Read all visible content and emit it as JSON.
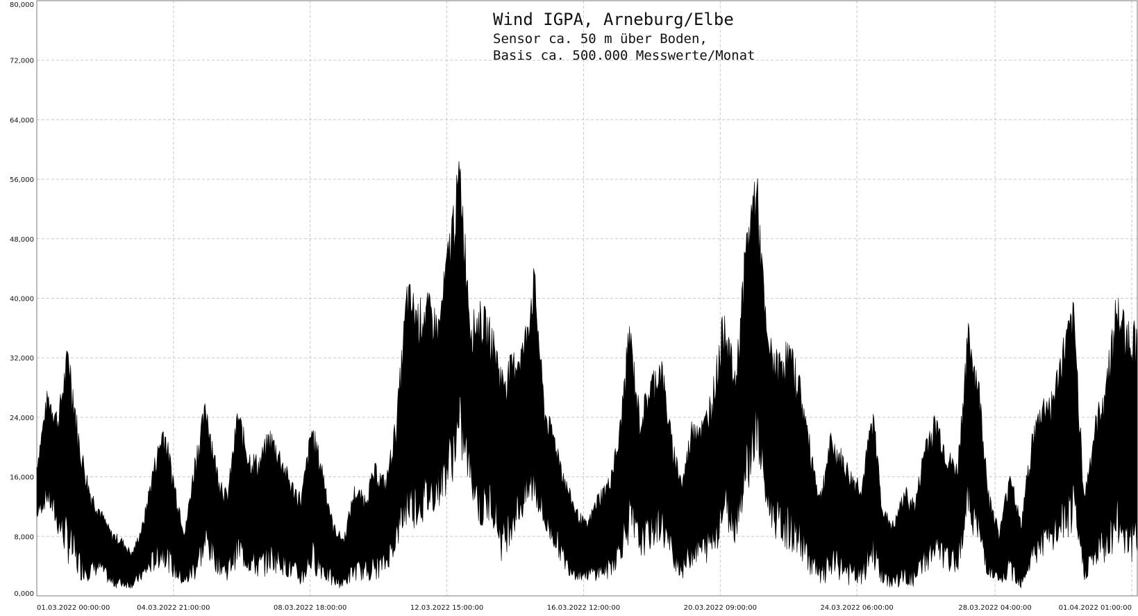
{
  "chart_data": {
    "type": "line",
    "title": "",
    "xlabel": "",
    "ylabel": "",
    "annotations": [
      "Wind  IGPA, Arneburg/Elbe",
      "Sensor ca. 50 m über Boden,",
      "Basis ca. 500.000 Messwerte/Monat"
    ],
    "ylim": [
      0,
      80000
    ],
    "y_ticks": [
      "0,000",
      "8,000",
      "16,000",
      "24,000",
      "32,000",
      "40,000",
      "48,000",
      "56,000",
      "64,000",
      "72,000",
      "80,000"
    ],
    "x_ticks": [
      "01.03.2022  00:00:00",
      "04.03.2022  21:00:00",
      "08.03.2022  18:00:00",
      "12.03.2022  15:00:00",
      "16.03.2022  12:00:00",
      "20.03.2022  09:00:00",
      "24.03.2022  06:00:00",
      "28.03.2022  04:00:00",
      "01.04.2022  01:00:00"
    ],
    "grid": true,
    "series_color": "#000000",
    "x_unit": "day of March 2022 (0 = 01.03.2022 00:00)",
    "series": [
      {
        "values_kind": "envelope",
        "x": [
          0,
          0.3,
          0.6,
          0.9,
          1.2,
          1.5,
          1.8,
          2.1,
          2.4,
          2.7,
          3.0,
          3.3,
          3.6,
          3.9,
          4.2,
          4.5,
          4.8,
          5.1,
          5.4,
          5.7,
          6.0,
          6.3,
          6.6,
          6.9,
          7.2,
          7.5,
          7.8,
          8.1,
          8.4,
          8.7,
          9.0,
          9.3,
          9.6,
          9.9,
          10.2,
          10.5,
          10.8,
          11.1,
          11.4,
          11.7,
          12.0,
          12.3,
          12.6,
          12.9,
          13.2,
          13.5,
          13.8,
          14.1,
          14.4,
          14.7,
          15.0,
          15.3,
          15.6,
          15.9,
          16.2,
          16.5,
          16.8,
          17.1,
          17.4,
          17.7,
          18.0,
          18.3,
          18.6,
          18.9,
          19.2,
          19.5,
          19.8,
          20.1,
          20.4,
          20.7,
          21.0,
          21.3,
          21.6,
          21.9,
          22.2,
          22.5,
          22.8,
          23.1,
          23.4,
          23.7,
          24.0,
          24.3,
          24.6,
          24.9,
          25.2,
          25.5,
          25.8,
          26.1,
          26.4,
          26.7,
          27.0,
          27.3,
          27.6,
          27.9,
          28.2,
          28.5,
          28.8,
          29.1,
          29.4,
          29.7,
          30.0,
          30.3,
          30.6,
          30.9,
          31.2
        ],
        "max": [
          18000,
          28000,
          25000,
          35000,
          22000,
          15000,
          12000,
          9000,
          8000,
          6000,
          10000,
          18000,
          24000,
          16000,
          9000,
          20000,
          27000,
          18000,
          14000,
          26000,
          20000,
          19000,
          23000,
          20000,
          16000,
          14000,
          24000,
          18000,
          10000,
          8000,
          15000,
          14000,
          18000,
          16000,
          25000,
          43000,
          40000,
          41000,
          38000,
          50000,
          60000,
          38000,
          40000,
          37000,
          31000,
          33000,
          35000,
          45000,
          26000,
          22000,
          16000,
          12000,
          10000,
          14000,
          16000,
          22000,
          38000,
          25000,
          30000,
          33000,
          22000,
          16000,
          25000,
          24000,
          30000,
          40000,
          30000,
          49000,
          59000,
          36000,
          33000,
          35000,
          31000,
          22000,
          14000,
          22000,
          20000,
          17000,
          16000,
          26000,
          12000,
          10000,
          15000,
          13000,
          22000,
          25000,
          20000,
          18000,
          37000,
          30000,
          14000,
          9000,
          18000,
          10000,
          22000,
          27000,
          28000,
          35000,
          40000,
          14000,
          24000,
          30000,
          41000,
          38000,
          37000
        ],
        "min": [
          10000,
          12000,
          8000,
          4000,
          2000,
          2000,
          3000,
          1000,
          1000,
          1000,
          2000,
          3000,
          4000,
          2000,
          1000,
          2000,
          5000,
          3000,
          2000,
          4000,
          3000,
          2000,
          3000,
          3000,
          2000,
          1000,
          3000,
          2000,
          1000,
          1000,
          2000,
          2000,
          2000,
          3000,
          6000,
          9000,
          9000,
          10000,
          12000,
          14000,
          18000,
          14000,
          8000,
          10000,
          4000,
          8000,
          10000,
          12000,
          8000,
          6000,
          3000,
          2000,
          2000,
          2000,
          2000,
          4000,
          7000,
          5000,
          6000,
          7000,
          4000,
          2000,
          4000,
          4000,
          5000,
          9000,
          7000,
          13000,
          18000,
          10000,
          7000,
          6000,
          5000,
          3000,
          1000,
          2000,
          2000,
          1000,
          1000,
          4000,
          1000,
          1000,
          1000,
          1000,
          3000,
          4000,
          3000,
          3000,
          10000,
          6000,
          2000,
          1000,
          2000,
          1000,
          3000,
          5000,
          5000,
          7000,
          8000,
          2000,
          3000,
          4000,
          6000,
          5000,
          3000
        ]
      }
    ]
  }
}
